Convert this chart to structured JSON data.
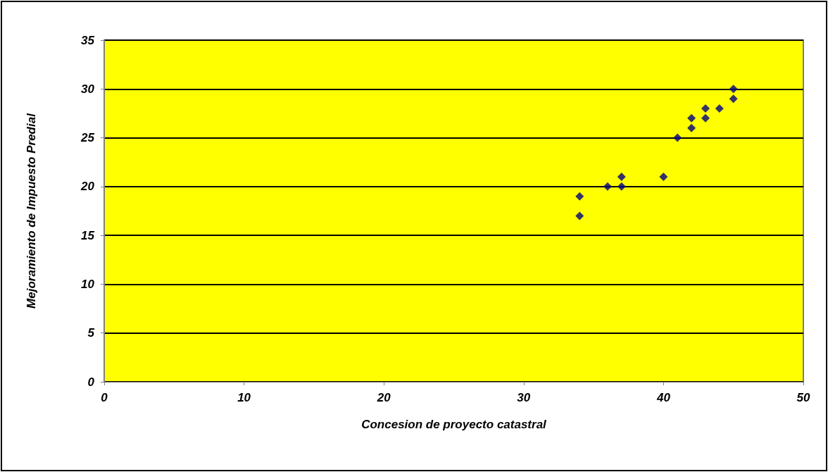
{
  "chart_data": {
    "type": "scatter",
    "xlabel": "Concesion de proyecto catastral",
    "ylabel": "Mejoramiento de Impuesto Predial",
    "x": [
      34,
      34,
      36,
      37,
      37,
      40,
      41,
      42,
      42,
      43,
      43,
      44,
      45,
      45
    ],
    "series": [
      {
        "color": "#000080",
        "values": [
          19,
          17,
          20,
          21,
          20,
          21,
          25,
          27,
          26,
          28,
          27,
          28,
          30,
          29
        ]
      }
    ],
    "xlim": [
      0,
      50
    ],
    "xticks": [
      0,
      10,
      20,
      30,
      40,
      50
    ],
    "ylim": [
      0,
      35
    ],
    "yticks": [
      0,
      5,
      10,
      15,
      20,
      25,
      30,
      35
    ],
    "grid": "y",
    "marker": "diamond"
  }
}
